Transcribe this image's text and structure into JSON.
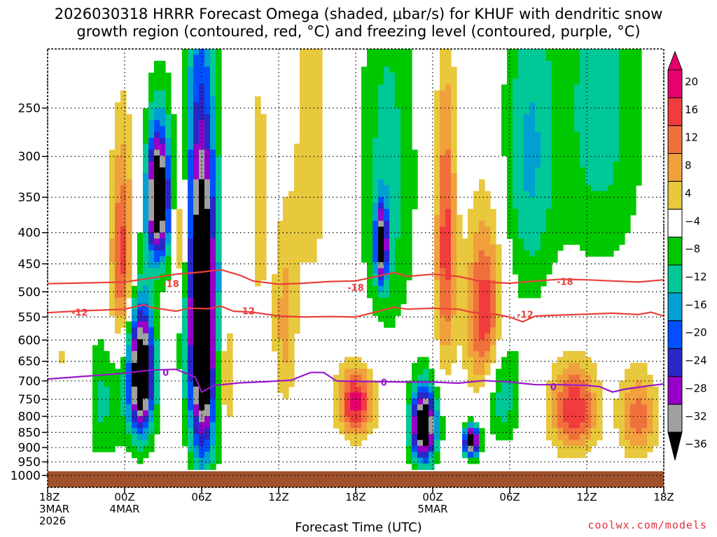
{
  "title_line_1": "2026030318 HRRR Forecast Omega (shaded, μbar/s) for KHUF with dendritic snow",
  "title_line_2": "growth region (contoured, red, °C) and freezing level (contoured, purple, °C)",
  "credit": "coolwx.com/models",
  "chart_data": {
    "type": "heatmap",
    "xlabel": "Forecast Time (UTC)",
    "ylabel": "",
    "x_ticks": [
      {
        "hour": 0,
        "label": "18Z",
        "sub1": "3MAR",
        "sub2": "2026"
      },
      {
        "hour": 6,
        "label": "00Z",
        "sub1": "4MAR",
        "sub2": ""
      },
      {
        "hour": 12,
        "label": "06Z",
        "sub1": "",
        "sub2": ""
      },
      {
        "hour": 18,
        "label": "12Z",
        "sub1": "",
        "sub2": ""
      },
      {
        "hour": 24,
        "label": "18Z",
        "sub1": "",
        "sub2": ""
      },
      {
        "hour": 30,
        "label": "00Z",
        "sub1": "5MAR",
        "sub2": ""
      },
      {
        "hour": 36,
        "label": "06Z",
        "sub1": "",
        "sub2": ""
      },
      {
        "hour": 42,
        "label": "12Z",
        "sub1": "",
        "sub2": ""
      },
      {
        "hour": 48,
        "label": "18Z",
        "sub1": "",
        "sub2": ""
      }
    ],
    "x_range_hours": [
      0,
      48
    ],
    "y_ticks": [
      "250",
      "300",
      "350",
      "400",
      "450",
      "500",
      "550",
      "600",
      "650",
      "700",
      "750",
      "800",
      "850",
      "900",
      "950",
      "1000"
    ],
    "y_range_hpa": [
      200,
      1000
    ],
    "grid": true,
    "colorbar": {
      "labels": [
        "20",
        "16",
        "12",
        "8",
        "4",
        "−4",
        "−8",
        "−12",
        "−16",
        "−20",
        "−24",
        "−28",
        "−32",
        "−36"
      ],
      "colors": [
        "#e8006e",
        "#f03c3c",
        "#f0703c",
        "#f0a03c",
        "#e8c83c",
        "#ffffff",
        "#00c800",
        "#00c896",
        "#00a0d2",
        "#0050ff",
        "#2828c8",
        "#9600c8",
        "#a0a0a0",
        "#000000"
      ],
      "location": "right"
    },
    "contours": {
      "dgz_minus_12": {
        "label": "-12",
        "color": "#e8403c",
        "points": [
          [
            0,
            541
          ],
          [
            2,
            538
          ],
          [
            4,
            536
          ],
          [
            6,
            534
          ],
          [
            7.5,
            525
          ],
          [
            8,
            530
          ],
          [
            10,
            538
          ],
          [
            11,
            532
          ],
          [
            12.5,
            533
          ],
          [
            13.5,
            528
          ],
          [
            14.5,
            538
          ],
          [
            16,
            540
          ],
          [
            18,
            548
          ],
          [
            20,
            550
          ],
          [
            22,
            549
          ],
          [
            24,
            550
          ],
          [
            25.5,
            540
          ],
          [
            27,
            530
          ],
          [
            28,
            534
          ],
          [
            30,
            532
          ],
          [
            32,
            534
          ],
          [
            33,
            540
          ],
          [
            35,
            545
          ],
          [
            36,
            550
          ],
          [
            37,
            560
          ],
          [
            38,
            548
          ],
          [
            40,
            546
          ],
          [
            42,
            544
          ],
          [
            44,
            542
          ],
          [
            46,
            545
          ],
          [
            47,
            540
          ],
          [
            48,
            548
          ]
        ]
      },
      "dgz_minus_18": {
        "label": "-18",
        "color": "#e8403c",
        "points": [
          [
            0,
            485
          ],
          [
            2,
            484
          ],
          [
            4,
            483
          ],
          [
            6,
            482
          ],
          [
            8,
            475
          ],
          [
            10,
            468
          ],
          [
            12,
            464
          ],
          [
            13.5,
            460
          ],
          [
            15,
            470
          ],
          [
            16,
            480
          ],
          [
            18,
            486
          ],
          [
            20,
            484
          ],
          [
            22,
            481
          ],
          [
            24,
            480
          ],
          [
            26,
            470
          ],
          [
            27,
            465
          ],
          [
            28,
            472
          ],
          [
            30,
            468
          ],
          [
            32,
            472
          ],
          [
            34,
            482
          ],
          [
            36,
            484
          ],
          [
            38,
            480
          ],
          [
            40,
            477
          ],
          [
            42,
            478
          ],
          [
            44,
            480
          ],
          [
            46,
            482
          ],
          [
            48,
            478
          ]
        ]
      },
      "freezing_level": {
        "label": "0",
        "color": "#9a18c8",
        "points": [
          [
            0,
            695
          ],
          [
            2,
            690
          ],
          [
            4,
            685
          ],
          [
            6,
            680
          ],
          [
            8,
            672
          ],
          [
            10,
            670
          ],
          [
            11.5,
            690
          ],
          [
            12,
            730
          ],
          [
            13,
            712
          ],
          [
            15,
            705
          ],
          [
            17,
            702
          ],
          [
            19,
            698
          ],
          [
            20.5,
            678
          ],
          [
            21.5,
            678
          ],
          [
            22.5,
            700
          ],
          [
            24,
            701
          ],
          [
            26,
            702
          ],
          [
            28,
            703
          ],
          [
            30,
            703
          ],
          [
            32,
            706
          ],
          [
            34,
            699
          ],
          [
            36,
            703
          ],
          [
            38,
            710
          ],
          [
            40,
            710
          ],
          [
            42,
            712
          ],
          [
            43,
            715
          ],
          [
            44,
            730
          ],
          [
            45,
            722
          ],
          [
            47,
            712
          ],
          [
            48,
            708
          ]
        ]
      }
    },
    "contour_labels": [
      {
        "contour": "dgz_minus_18",
        "text": "-18",
        "hour": 9.6,
        "hpa": 485
      },
      {
        "contour": "dgz_minus_18",
        "text": "-18",
        "hour": 24,
        "hpa": 492
      },
      {
        "contour": "dgz_minus_18",
        "text": "-18",
        "hour": 40.3,
        "hpa": 481
      },
      {
        "contour": "dgz_minus_12",
        "text": "-12",
        "hour": 2.5,
        "hpa": 540
      },
      {
        "contour": "dgz_minus_12",
        "text": "-12",
        "hour": 15.5,
        "hpa": 537
      },
      {
        "contour": "dgz_minus_12",
        "text": "-12",
        "hour": 37.2,
        "hpa": 544
      },
      {
        "contour": "freezing_level",
        "text": "0",
        "hour": 9.2,
        "hpa": 678
      },
      {
        "contour": "freezing_level",
        "text": "0",
        "hour": 26.2,
        "hpa": 703
      },
      {
        "contour": "freezing_level",
        "text": "0",
        "hour": 39.4,
        "hpa": 715
      }
    ],
    "omega_features": [
      {
        "hour": 12.1,
        "hpa": 590,
        "spread_h": 1.1,
        "spread_p": 340,
        "peak": -45
      },
      {
        "hour": 8.6,
        "hpa": 350,
        "spread_h": 0.9,
        "spread_p": 90,
        "peak": -42
      },
      {
        "hour": 7.3,
        "hpa": 680,
        "spread_h": 1.0,
        "spread_p": 170,
        "peak": -42
      },
      {
        "hour": 29.3,
        "hpa": 830,
        "spread_h": 1.0,
        "spread_p": 120,
        "peak": -42
      },
      {
        "hour": 33.0,
        "hpa": 880,
        "spread_h": 0.6,
        "spread_p": 50,
        "peak": -40
      },
      {
        "hour": 26.0,
        "hpa": 420,
        "spread_h": 0.5,
        "spread_p": 60,
        "peak": -30
      },
      {
        "hour": 11.2,
        "hpa": 370,
        "spread_h": 1.6,
        "spread_p": 250,
        "peak": -10
      },
      {
        "hour": 26.5,
        "hpa": 330,
        "spread_h": 2.2,
        "spread_p": 250,
        "peak": -10
      },
      {
        "hour": 37.5,
        "hpa": 300,
        "spread_h": 2.0,
        "spread_p": 200,
        "peak": -12
      },
      {
        "hour": 43.0,
        "hpa": 250,
        "spread_h": 3.5,
        "spread_p": 200,
        "peak": -10
      },
      {
        "hour": 4.0,
        "hpa": 760,
        "spread_h": 2.5,
        "spread_p": 180,
        "peak": -9
      },
      {
        "hour": 35.3,
        "hpa": 730,
        "spread_h": 1.5,
        "spread_p": 150,
        "peak": -12
      },
      {
        "hour": 5.8,
        "hpa": 440,
        "spread_h": 0.9,
        "spread_p": 170,
        "peak": 18
      },
      {
        "hour": 10.4,
        "hpa": 400,
        "spread_h": 0.7,
        "spread_p": 130,
        "peak": 16
      },
      {
        "hour": 13.8,
        "hpa": 680,
        "spread_h": 0.8,
        "spread_p": 160,
        "peak": 10
      },
      {
        "hour": 18.5,
        "hpa": 560,
        "spread_h": 0.9,
        "spread_p": 200,
        "peak": 10
      },
      {
        "hour": 24.0,
        "hpa": 760,
        "spread_h": 1.4,
        "spread_p": 100,
        "peak": 22
      },
      {
        "hour": 31.0,
        "hpa": 420,
        "spread_h": 0.8,
        "spread_p": 220,
        "peak": 18
      },
      {
        "hour": 34.0,
        "hpa": 550,
        "spread_h": 1.4,
        "spread_p": 180,
        "peak": 20
      },
      {
        "hour": 41.0,
        "hpa": 780,
        "spread_h": 1.8,
        "spread_p": 130,
        "peak": 20
      },
      {
        "hour": 46.0,
        "hpa": 800,
        "spread_h": 1.5,
        "spread_p": 130,
        "peak": 14
      },
      {
        "hour": 2.9,
        "hpa": 780,
        "spread_h": 0.6,
        "spread_p": 120,
        "peak": 10
      },
      {
        "hour": 20.5,
        "hpa": 300,
        "spread_h": 1.3,
        "spread_p": 200,
        "peak": 7
      },
      {
        "hour": 1.2,
        "hpa": 700,
        "spread_h": 0.7,
        "spread_p": 240,
        "peak": 6
      },
      {
        "hour": 16.5,
        "hpa": 360,
        "spread_h": 0.8,
        "spread_p": 200,
        "peak": 6
      }
    ]
  }
}
